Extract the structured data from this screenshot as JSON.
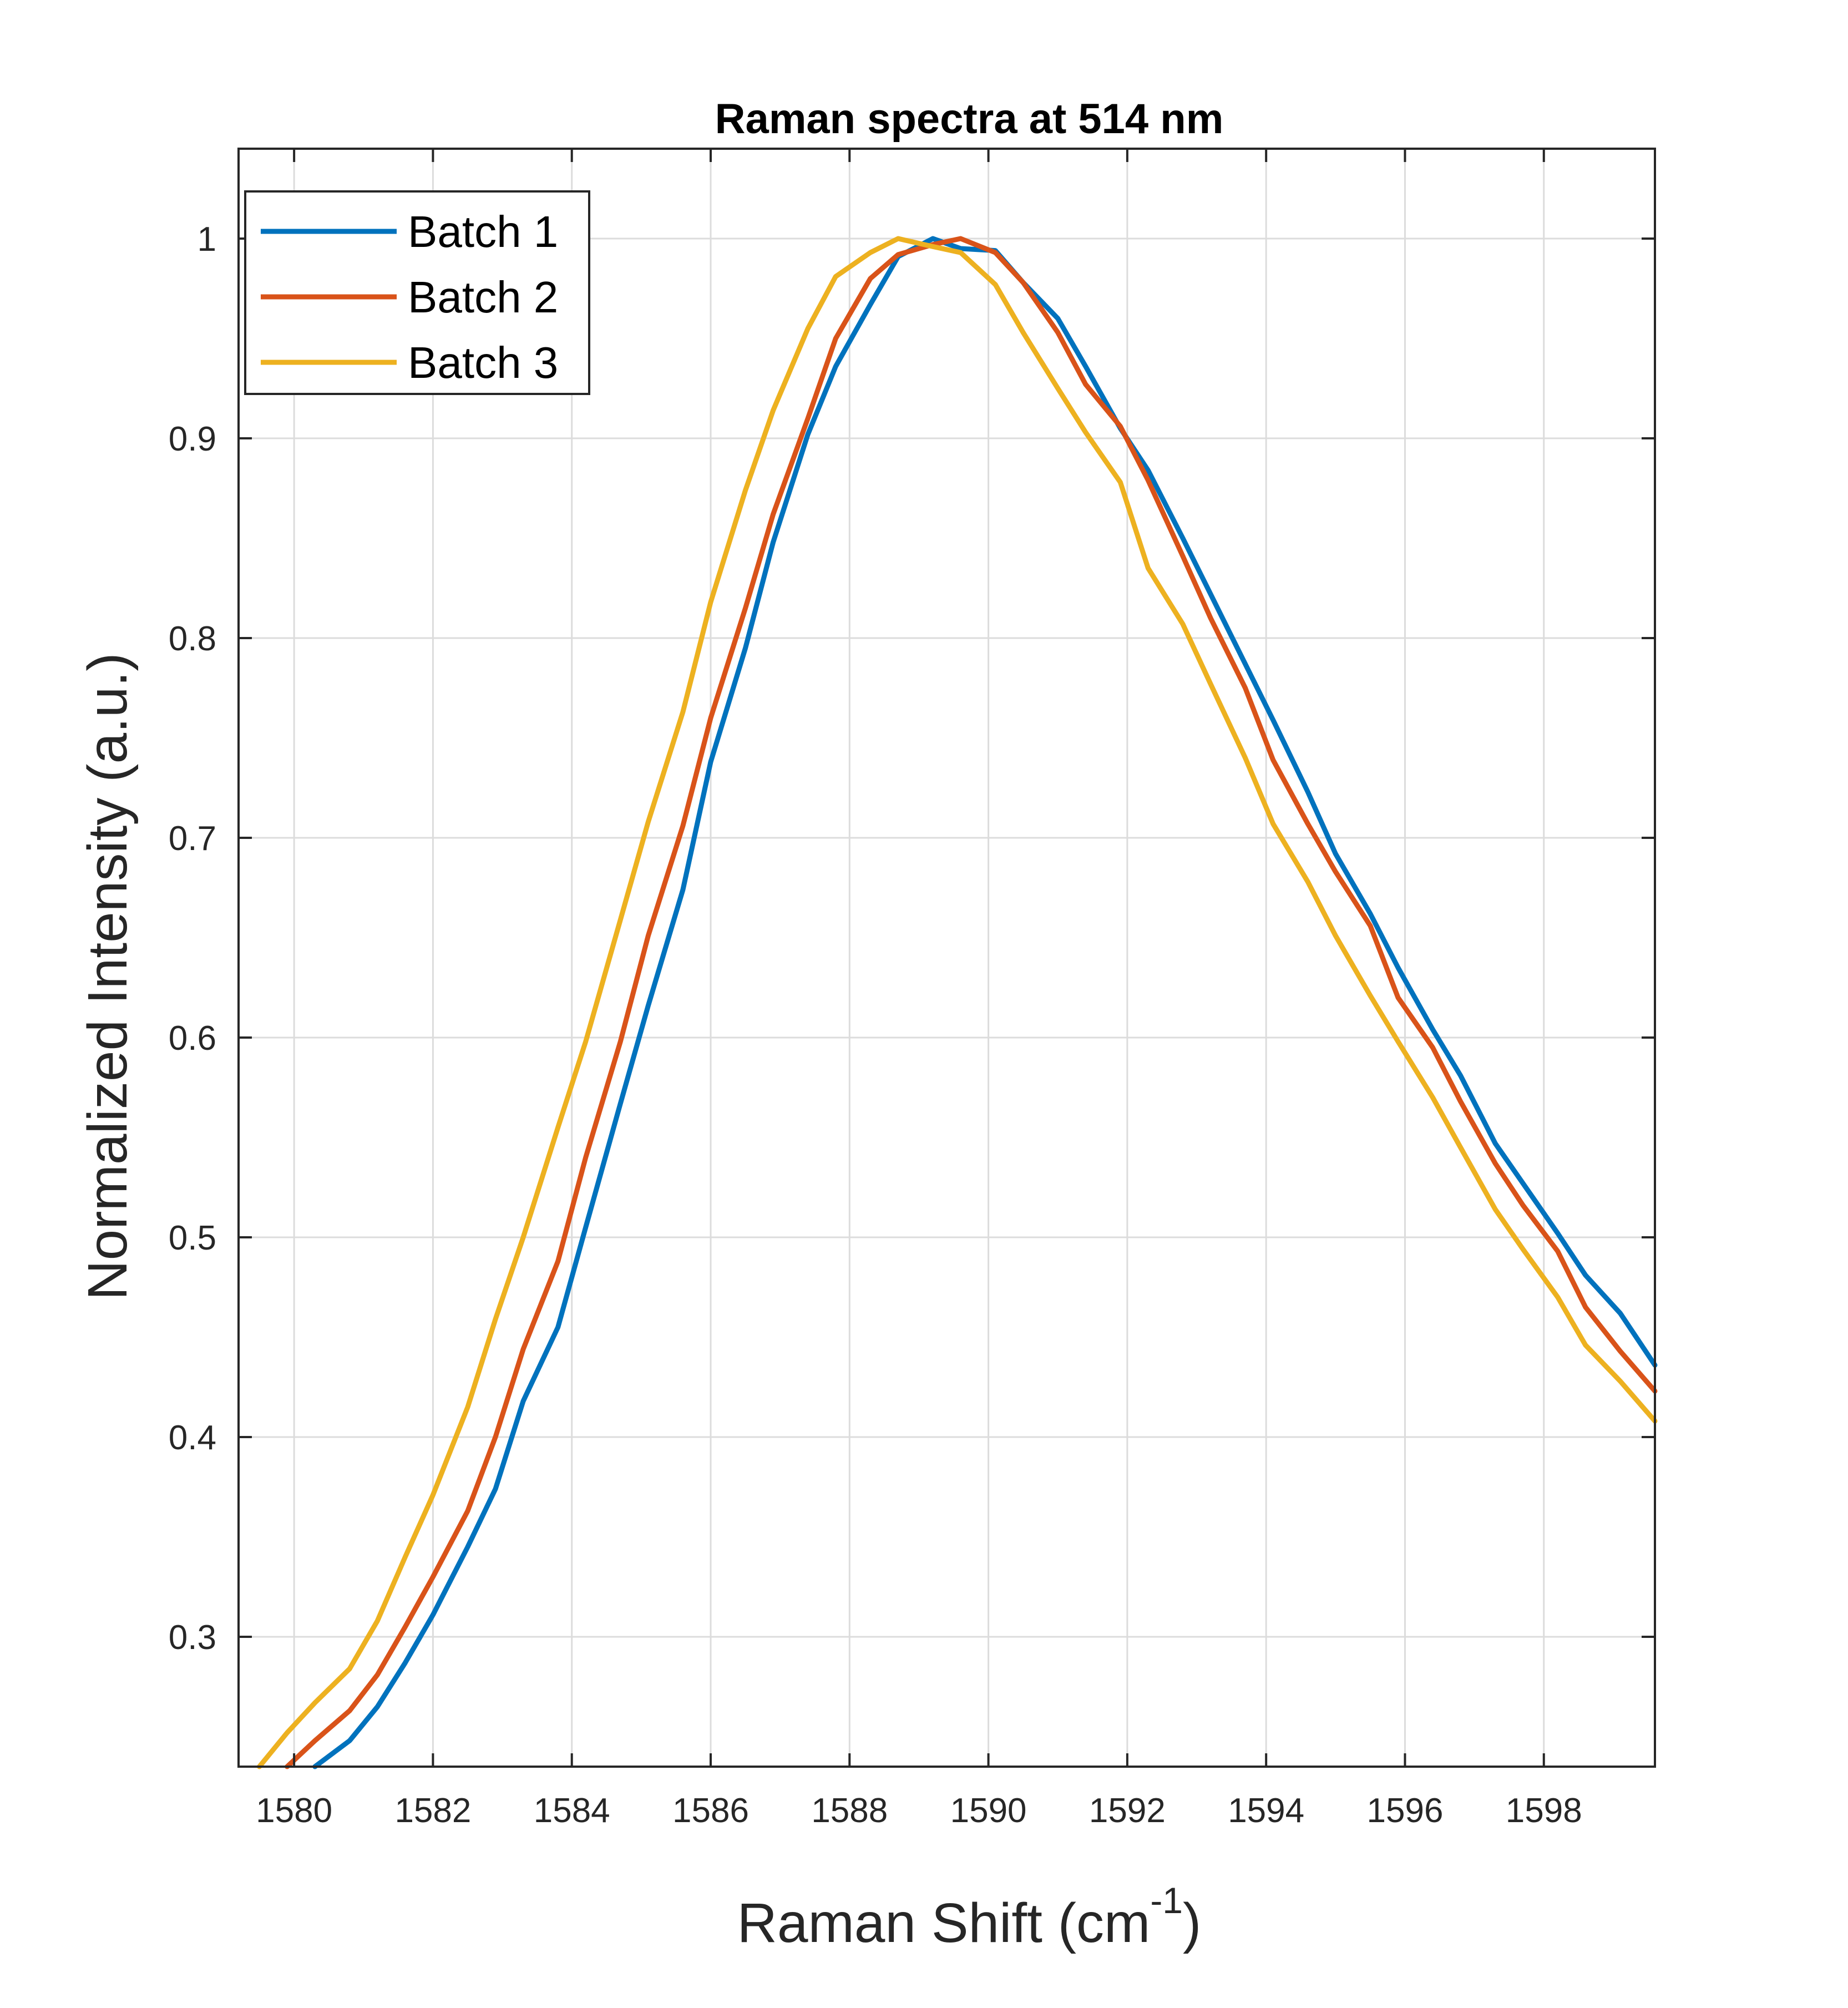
{
  "chart_data": {
    "type": "line",
    "title": "Raman spectra at 514 nm",
    "xlabel": "Raman Shift (cm",
    "xlabel_sup": "-1",
    "xlabel_close": ")",
    "ylabel": "Normalized Intensity (a.u.)",
    "xlim": [
      1579.2,
      1599.6
    ],
    "ylim": [
      0.235,
      1.045
    ],
    "xticks": [
      1580,
      1582,
      1584,
      1586,
      1588,
      1590,
      1592,
      1594,
      1596,
      1598
    ],
    "yticks": [
      0.3,
      0.4,
      0.5,
      0.6,
      0.7,
      0.8,
      0.9,
      1
    ],
    "ytick_labels": [
      "0.3",
      "0.4",
      "0.5",
      "0.6",
      "0.7",
      "0.8",
      "0.9",
      "1"
    ],
    "grid": true,
    "legend_position": "top-left",
    "series": [
      {
        "name": "Batch 1",
        "color": "#0072BD",
        "x": [
          1580.3,
          1580.8,
          1581.2,
          1581.6,
          1582.0,
          1582.5,
          1582.9,
          1583.3,
          1583.8,
          1584.2,
          1584.7,
          1585.1,
          1585.6,
          1586.0,
          1586.5,
          1586.9,
          1587.4,
          1587.8,
          1588.3,
          1588.7,
          1589.2,
          1589.6,
          1590.1,
          1590.5,
          1591.0,
          1591.4,
          1591.9,
          1592.3,
          1592.8,
          1593.2,
          1593.7,
          1594.1,
          1594.6,
          1595.0,
          1595.5,
          1595.9,
          1596.4,
          1596.8,
          1597.3,
          1597.7,
          1598.2,
          1598.6,
          1599.1,
          1599.6
        ],
        "values": [
          0.235,
          0.248,
          0.265,
          0.287,
          0.311,
          0.345,
          0.374,
          0.418,
          0.455,
          0.505,
          0.567,
          0.616,
          0.674,
          0.738,
          0.795,
          0.848,
          0.902,
          0.936,
          0.967,
          0.991,
          1.0,
          0.995,
          0.994,
          0.978,
          0.96,
          0.936,
          0.905,
          0.884,
          0.85,
          0.822,
          0.787,
          0.759,
          0.723,
          0.692,
          0.662,
          0.635,
          0.604,
          0.581,
          0.547,
          0.527,
          0.502,
          0.481,
          0.462,
          0.436
        ]
      },
      {
        "name": "Batch 2",
        "color": "#D95319",
        "x": [
          1579.9,
          1580.3,
          1580.8,
          1581.2,
          1581.6,
          1582.0,
          1582.5,
          1582.9,
          1583.3,
          1583.8,
          1584.2,
          1584.7,
          1585.1,
          1585.6,
          1586.0,
          1586.5,
          1586.9,
          1587.4,
          1587.8,
          1588.3,
          1588.7,
          1589.2,
          1589.6,
          1590.1,
          1590.5,
          1591.0,
          1591.4,
          1591.9,
          1592.3,
          1592.8,
          1593.2,
          1593.7,
          1594.1,
          1594.6,
          1595.0,
          1595.5,
          1595.9,
          1596.4,
          1596.8,
          1597.3,
          1597.7,
          1598.2,
          1598.6,
          1599.1,
          1599.6
        ],
        "values": [
          0.235,
          0.248,
          0.263,
          0.281,
          0.305,
          0.33,
          0.363,
          0.4,
          0.444,
          0.488,
          0.54,
          0.598,
          0.651,
          0.706,
          0.76,
          0.815,
          0.862,
          0.91,
          0.95,
          0.98,
          0.992,
          0.997,
          1.0,
          0.993,
          0.978,
          0.953,
          0.927,
          0.906,
          0.879,
          0.841,
          0.81,
          0.775,
          0.739,
          0.707,
          0.683,
          0.656,
          0.62,
          0.595,
          0.568,
          0.537,
          0.516,
          0.493,
          0.465,
          0.443,
          0.423
        ]
      },
      {
        "name": "Batch 3",
        "color": "#EDB120",
        "x": [
          1579.5,
          1579.9,
          1580.3,
          1580.8,
          1581.2,
          1581.6,
          1582.0,
          1582.5,
          1582.9,
          1583.3,
          1583.8,
          1584.2,
          1584.7,
          1585.1,
          1585.6,
          1586.0,
          1586.5,
          1586.9,
          1587.4,
          1587.8,
          1588.3,
          1588.7,
          1589.2,
          1589.6,
          1590.1,
          1590.5,
          1591.0,
          1591.4,
          1591.9,
          1592.3,
          1592.8,
          1593.2,
          1593.7,
          1594.1,
          1594.6,
          1595.0,
          1595.5,
          1595.9,
          1596.4,
          1596.8,
          1597.3,
          1597.7,
          1598.2,
          1598.6,
          1599.1,
          1599.6
        ],
        "values": [
          0.235,
          0.252,
          0.267,
          0.284,
          0.308,
          0.34,
          0.371,
          0.415,
          0.459,
          0.5,
          0.555,
          0.598,
          0.659,
          0.708,
          0.763,
          0.818,
          0.874,
          0.914,
          0.955,
          0.981,
          0.993,
          1.0,
          0.996,
          0.993,
          0.977,
          0.953,
          0.925,
          0.903,
          0.878,
          0.835,
          0.807,
          0.777,
          0.74,
          0.707,
          0.678,
          0.651,
          0.621,
          0.598,
          0.57,
          0.545,
          0.514,
          0.494,
          0.47,
          0.446,
          0.428,
          0.408
        ]
      }
    ]
  }
}
